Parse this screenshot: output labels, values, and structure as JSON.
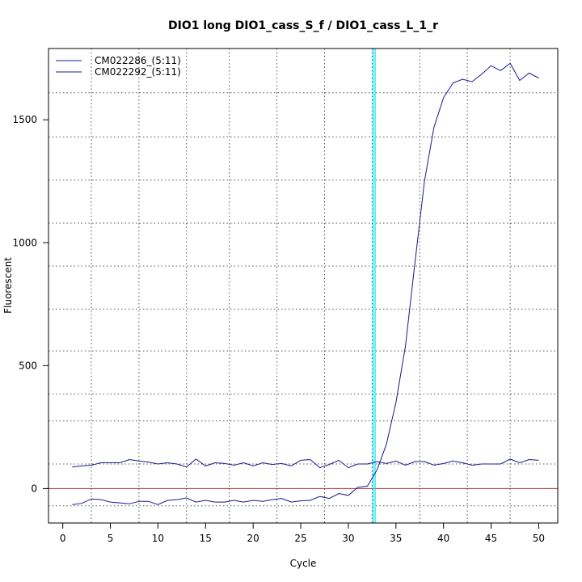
{
  "chart_data": {
    "type": "line",
    "title": "DIO1 long DIO1_cass_S_f / DIO1_cass_L_1_r",
    "xlabel": "Cycle",
    "ylabel": "Fluorescent",
    "xlim": [
      -1.5,
      52.0
    ],
    "ylim": [
      -140,
      1790
    ],
    "x_ticks": [
      0,
      5,
      10,
      15,
      20,
      25,
      30,
      35,
      40,
      45,
      50
    ],
    "y_ticks": [
      0,
      500,
      1000,
      1500
    ],
    "grid": "on",
    "grid_x_positions": [
      3,
      8,
      13,
      17.5,
      22.5,
      27.5,
      32.5,
      37.5,
      42.5,
      47
    ],
    "grid_y_positions": [
      -70,
      100,
      275,
      385,
      560,
      730,
      905,
      1080,
      1255,
      1430,
      1610
    ],
    "legend_position": "top-left",
    "threshold": {
      "y": 0,
      "color": "#b03030"
    },
    "cycle_marker": {
      "x": 32.6,
      "color": "#00e5ee"
    },
    "series": [
      {
        "name": "CM022286_(5:11)",
        "color": "#1a1a8c",
        "x": [
          1,
          2,
          3,
          4,
          5,
          6,
          7,
          8,
          9,
          10,
          11,
          12,
          13,
          14,
          15,
          16,
          17,
          18,
          19,
          20,
          21,
          22,
          23,
          24,
          25,
          26,
          27,
          28,
          29,
          30,
          31,
          32,
          33,
          34,
          35,
          36,
          37,
          38,
          39,
          40,
          41,
          42,
          43,
          44,
          45,
          46,
          47,
          48,
          49,
          50
        ],
        "y": [
          -65,
          -60,
          -42,
          -45,
          -55,
          -58,
          -62,
          -52,
          -52,
          -65,
          -48,
          -45,
          -38,
          -55,
          -48,
          -55,
          -55,
          -48,
          -55,
          -48,
          -52,
          -45,
          -40,
          -55,
          -50,
          -48,
          -32,
          -40,
          -20,
          -28,
          5,
          10,
          75,
          180,
          350,
          580,
          920,
          1250,
          1470,
          1590,
          1650,
          1665,
          1655,
          1685,
          1720,
          1700,
          1730,
          1660,
          1690,
          1670
        ]
      },
      {
        "name": "CM022292_(5:11)",
        "color": "#1a1a8c",
        "x": [
          1,
          2,
          3,
          4,
          5,
          6,
          7,
          8,
          9,
          10,
          11,
          12,
          13,
          14,
          15,
          16,
          17,
          18,
          19,
          20,
          21,
          22,
          23,
          24,
          25,
          26,
          27,
          28,
          29,
          30,
          31,
          32,
          33,
          34,
          35,
          36,
          37,
          38,
          39,
          40,
          41,
          42,
          43,
          44,
          45,
          46,
          47,
          48,
          49,
          50
        ],
        "y": [
          88,
          92,
          95,
          105,
          105,
          105,
          118,
          112,
          108,
          100,
          105,
          100,
          88,
          120,
          92,
          105,
          102,
          95,
          105,
          92,
          105,
          98,
          102,
          92,
          115,
          118,
          85,
          98,
          115,
          85,
          100,
          100,
          110,
          102,
          112,
          95,
          110,
          110,
          95,
          102,
          112,
          105,
          95,
          100,
          100,
          100,
          120,
          105,
          118,
          115
        ]
      }
    ]
  }
}
